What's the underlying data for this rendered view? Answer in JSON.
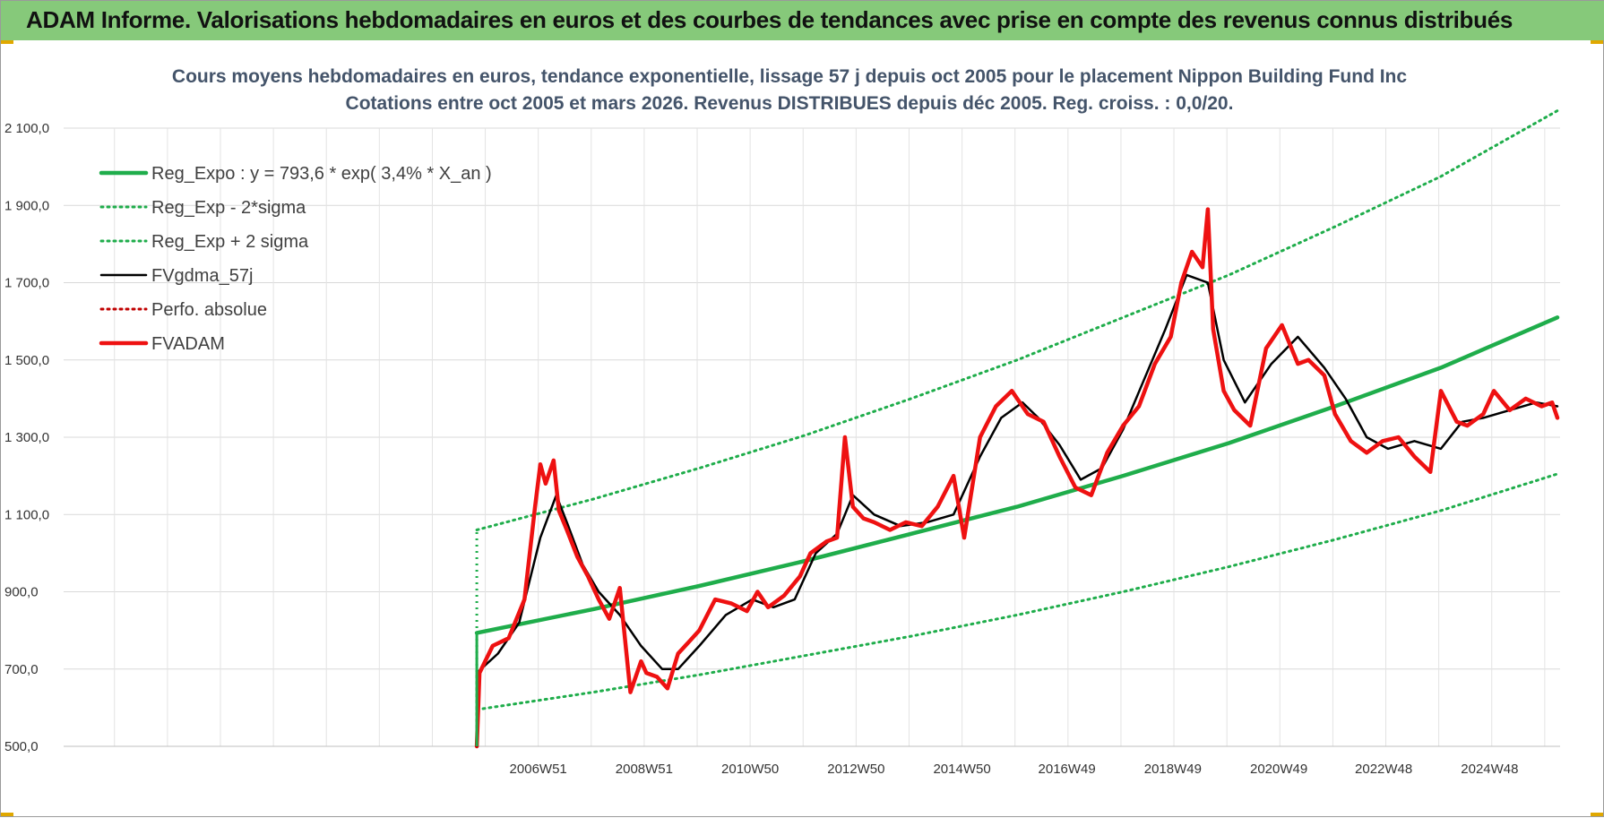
{
  "banner": {
    "title": "ADAM Informe. Valorisations hebdomadaires en euros et des courbes de tendances avec prise en compte des revenus connus distribués"
  },
  "chart_data": {
    "type": "line",
    "title_line1": "Cours moyens hebdomadaires en euros, tendance exponentielle, lissage 57 j depuis oct 2005 pour le placement Nippon Building Fund Inc",
    "title_line2": "Cotations entre oct 2005 et mars 2026.  Revenus DISTRIBUES depuis déc 2005. Reg. croiss. : 0,0/20.",
    "ylim": [
      500,
      2100
    ],
    "y_ticks": [
      "500,0",
      "700,0",
      "900,0",
      "1 100,0",
      "1 300,0",
      "1 500,0",
      "1 700,0",
      "1 900,0",
      "2 100,0"
    ],
    "y_tick_values": [
      500,
      700,
      900,
      1100,
      1300,
      1500,
      1700,
      1900,
      2100
    ],
    "x_ticks": [
      "2006W51",
      "2008W51",
      "2010W50",
      "2012W50",
      "2014W50",
      "2016W49",
      "2018W49",
      "2020W49",
      "2022W48",
      "2024W48"
    ],
    "x_tick_values": [
      2006.96,
      2008.96,
      2010.96,
      2012.96,
      2014.96,
      2016.94,
      2018.94,
      2020.94,
      2022.92,
      2024.92
    ],
    "xlim": [
      1998.0,
      2026.25
    ],
    "grid": true,
    "legend_position": "top-left",
    "colors": {
      "reg": "#1fad4b",
      "fv": "#000000",
      "adam": "#ee1111",
      "perfo": "#c00000"
    },
    "series": [
      {
        "name": "Reg_Expo : y = 793,6 * exp( 3,4% *  X_an )",
        "style": "solid-thick",
        "color": "#1fad4b",
        "x": [
          2005.8,
          2008,
          2010,
          2012,
          2014,
          2016,
          2018,
          2020,
          2022,
          2024,
          2026.2
        ],
        "y": [
          793.6,
          855,
          915,
          980,
          1050,
          1120,
          1200,
          1285,
          1380,
          1480,
          1610
        ]
      },
      {
        "name": "Reg_Exp - 2*sigma",
        "style": "dotted",
        "color": "#1fad4b",
        "x": [
          2005.8,
          2008,
          2010,
          2012,
          2014,
          2016,
          2018,
          2020,
          2022,
          2024,
          2026.2
        ],
        "y": [
          595,
          640,
          685,
          735,
          785,
          840,
          900,
          965,
          1035,
          1110,
          1205
        ]
      },
      {
        "name": "Reg_Exp + 2 sigma",
        "style": "dotted",
        "color": "#1fad4b",
        "x": [
          2005.8,
          2008,
          2010,
          2012,
          2014,
          2016,
          2018,
          2020,
          2022,
          2024,
          2026.2
        ],
        "y": [
          1060,
          1140,
          1220,
          1305,
          1400,
          1500,
          1610,
          1720,
          1845,
          1975,
          2145
        ]
      },
      {
        "name": "FVgdma_57j",
        "style": "solid",
        "color": "#000000",
        "x": [
          2005.8,
          2006.2,
          2006.6,
          2007.0,
          2007.3,
          2007.5,
          2007.8,
          2008.1,
          2008.5,
          2008.9,
          2009.3,
          2009.6,
          2010.0,
          2010.5,
          2011.0,
          2011.4,
          2011.8,
          2012.2,
          2012.6,
          2012.9,
          2013.3,
          2013.8,
          2014.3,
          2014.8,
          2015.3,
          2015.7,
          2016.1,
          2016.4,
          2016.8,
          2017.2,
          2017.6,
          2018.0,
          2018.4,
          2018.8,
          2019.2,
          2019.6,
          2019.9,
          2020.3,
          2020.8,
          2021.3,
          2021.8,
          2022.2,
          2022.6,
          2023.0,
          2023.5,
          2024.0,
          2024.4,
          2024.8,
          2025.3,
          2025.8,
          2026.2
        ],
        "y": [
          690,
          740,
          820,
          1040,
          1150,
          1080,
          970,
          900,
          840,
          760,
          700,
          700,
          760,
          840,
          880,
          860,
          880,
          1000,
          1050,
          1150,
          1100,
          1070,
          1080,
          1100,
          1250,
          1350,
          1390,
          1350,
          1280,
          1190,
          1220,
          1320,
          1450,
          1580,
          1720,
          1700,
          1500,
          1390,
          1490,
          1560,
          1480,
          1400,
          1300,
          1270,
          1290,
          1270,
          1340,
          1350,
          1370,
          1390,
          1380
        ]
      },
      {
        "name": "Perfo. absolue",
        "style": "dotted",
        "color": "#c00000",
        "x": [
          2005.8,
          2005.8
        ],
        "y": [
          500,
          690
        ]
      },
      {
        "name": "FVADAM",
        "style": "solid-thick",
        "color": "#ee1111",
        "x": [
          2005.8,
          2005.85,
          2006.1,
          2006.4,
          2006.7,
          2006.9,
          2007.0,
          2007.1,
          2007.25,
          2007.35,
          2007.5,
          2007.7,
          2007.9,
          2008.1,
          2008.3,
          2008.5,
          2008.7,
          2008.9,
          2009.0,
          2009.2,
          2009.4,
          2009.6,
          2009.8,
          2010.0,
          2010.3,
          2010.6,
          2010.9,
          2011.1,
          2011.3,
          2011.6,
          2011.9,
          2012.1,
          2012.4,
          2012.6,
          2012.75,
          2012.9,
          2013.1,
          2013.3,
          2013.6,
          2013.9,
          2014.2,
          2014.5,
          2014.8,
          2015.0,
          2015.3,
          2015.6,
          2015.9,
          2016.2,
          2016.5,
          2016.8,
          2017.1,
          2017.4,
          2017.7,
          2018.0,
          2018.3,
          2018.6,
          2018.9,
          2019.1,
          2019.3,
          2019.5,
          2019.6,
          2019.7,
          2019.9,
          2020.1,
          2020.4,
          2020.7,
          2021.0,
          2021.3,
          2021.5,
          2021.8,
          2022.0,
          2022.3,
          2022.6,
          2022.9,
          2023.2,
          2023.5,
          2023.8,
          2024.0,
          2024.3,
          2024.5,
          2024.8,
          2025.0,
          2025.3,
          2025.6,
          2025.9,
          2026.1,
          2026.2
        ],
        "y": [
          500,
          690,
          760,
          780,
          880,
          1120,
          1230,
          1180,
          1240,
          1110,
          1060,
          990,
          940,
          880,
          830,
          910,
          640,
          720,
          690,
          680,
          650,
          740,
          770,
          800,
          880,
          870,
          850,
          900,
          860,
          890,
          940,
          1000,
          1030,
          1040,
          1300,
          1120,
          1090,
          1080,
          1060,
          1080,
          1070,
          1120,
          1200,
          1040,
          1300,
          1380,
          1420,
          1360,
          1340,
          1250,
          1170,
          1150,
          1260,
          1330,
          1380,
          1490,
          1560,
          1700,
          1780,
          1740,
          1890,
          1580,
          1420,
          1370,
          1330,
          1530,
          1590,
          1490,
          1500,
          1460,
          1360,
          1290,
          1260,
          1290,
          1300,
          1250,
          1210,
          1420,
          1340,
          1330,
          1360,
          1420,
          1370,
          1400,
          1380,
          1390,
          1350
        ]
      }
    ]
  }
}
